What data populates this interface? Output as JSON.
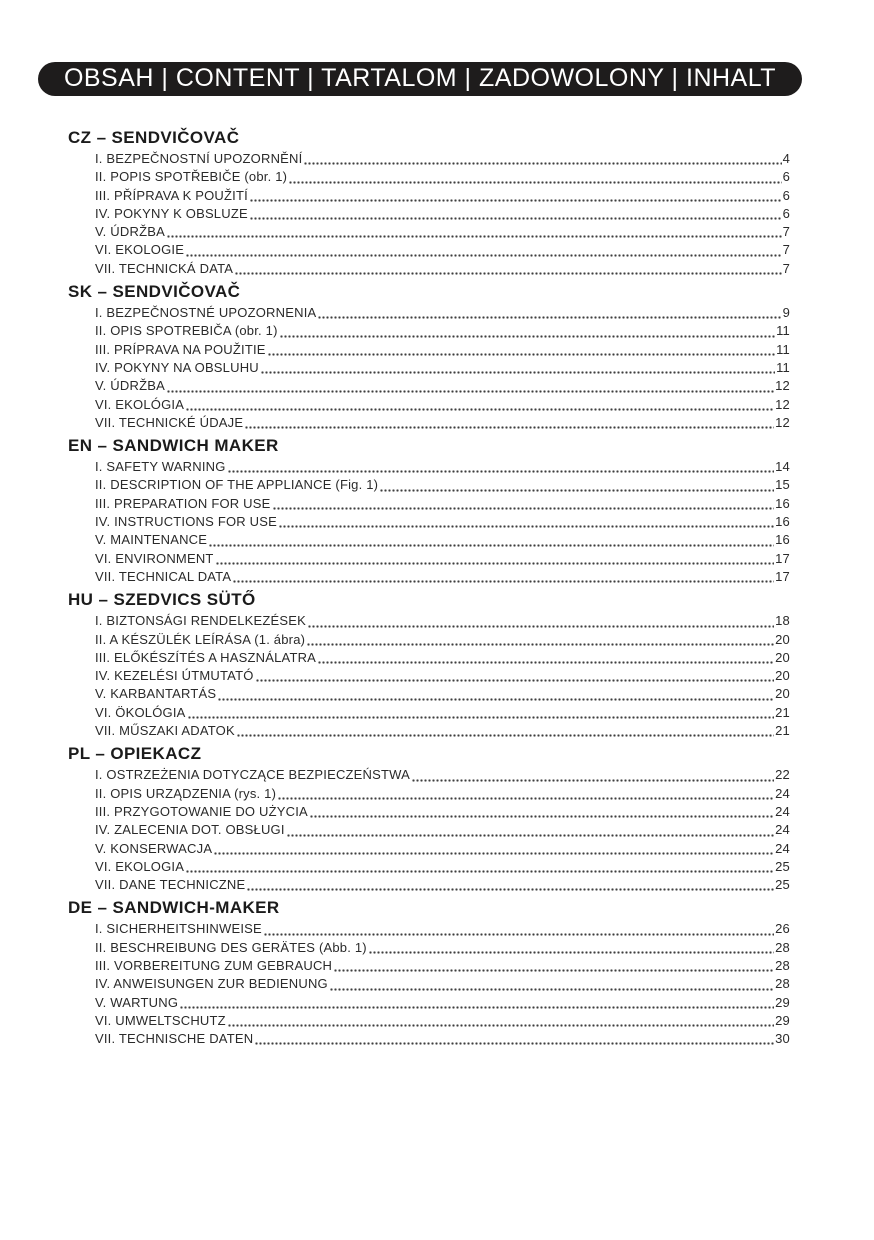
{
  "colors": {
    "header_bg": "#1e1c1c",
    "header_text": "#ffffff",
    "text": "#2a2a2a",
    "text_strong": "#1b1b1b",
    "page_bg": "#ffffff"
  },
  "header": {
    "title": "OBSAH | CONTENT | TARTALOM | ZADOWOLONY | INHALT"
  },
  "sections": [
    {
      "title": "CZ – SENDVIČOVAČ",
      "items": [
        {
          "label": "I. BEZPEČNOSTNÍ UPOZORNĚNÍ",
          "page": "4"
        },
        {
          "label": "II. POPIS SPOTŘEBIČE (obr. 1)",
          "page": "6"
        },
        {
          "label": "III. PŘÍPRAVA K POUŽITÍ",
          "page": "6"
        },
        {
          "label": "IV. POKYNY K OBSLUZE",
          "page": "6"
        },
        {
          "label": "V. ÚDRŽBA",
          "page": "7"
        },
        {
          "label": "VI. EKOLOGIE",
          "page": "7"
        },
        {
          "label": "VII. TECHNICKÁ DATA",
          "page": "7"
        }
      ]
    },
    {
      "title": "SK – SENDVIČOVAČ",
      "items": [
        {
          "label": "I. BEZPEČNOSTNÉ UPOZORNENIA",
          "page": "9"
        },
        {
          "label": "II. OPIS SPOTREBIČA (obr. 1)",
          "page": "11"
        },
        {
          "label": "III. PRÍPRAVA NA POUŽITIE",
          "page": "11"
        },
        {
          "label": "IV. POKYNY NA OBSLUHU",
          "page": "11"
        },
        {
          "label": "V. ÚDRŽBA",
          "page": "12"
        },
        {
          "label": "VI. EKOLÓGIA",
          "page": "12"
        },
        {
          "label": "VII. TECHNICKÉ ÚDAJE",
          "page": "12"
        }
      ]
    },
    {
      "title": "EN – SANDWICH MAKER",
      "items": [
        {
          "label": "I. SAFETY WARNING",
          "page": "14"
        },
        {
          "label": "II. DESCRIPTION OF THE APPLIANCE (Fig. 1)",
          "page": "15"
        },
        {
          "label": "III. PREPARATION FOR USE",
          "page": "16"
        },
        {
          "label": "IV. INSTRUCTIONS FOR USE",
          "page": "16"
        },
        {
          "label": "V. MAINTENANCE",
          "page": "16"
        },
        {
          "label": "VI. ENVIRONMENT",
          "page": "17"
        },
        {
          "label": "VII. TECHNICAL DATA",
          "page": "17"
        }
      ]
    },
    {
      "title": "HU – SZEDVICS SÜTŐ",
      "items": [
        {
          "label": "I. BIZTONSÁGI RENDELKEZÉSEK",
          "page": "18"
        },
        {
          "label": "II. A KÉSZÜLÉK LEÍRÁSA (1. ábra)",
          "page": "20"
        },
        {
          "label": "III. ELŐKÉSZÍTÉS A HASZNÁLATRA",
          "page": "20"
        },
        {
          "label": "IV. KEZELÉSI ÚTMUTATÓ",
          "page": "20"
        },
        {
          "label": "V. KARBANTARTÁS",
          "page": "20"
        },
        {
          "label": "VI. ÖKOLÓGIA",
          "page": "21"
        },
        {
          "label": "VII. MŰSZAKI ADATOK",
          "page": "21"
        }
      ]
    },
    {
      "title": "PL – OPIEKACZ",
      "items": [
        {
          "label": "I. OSTRZEŻENIA DOTYCZĄCE BEZPIECZEŃSTWA",
          "page": "22"
        },
        {
          "label": "II. OPIS URZĄDZENIA (rys. 1)",
          "page": "24"
        },
        {
          "label": "III. PRZYGOTOWANIE DO UŻYCIA",
          "page": "24"
        },
        {
          "label": "IV. ZALECENIA DOT. OBSŁUGI",
          "page": "24"
        },
        {
          "label": "V. KONSERWACJA",
          "page": "24"
        },
        {
          "label": "VI. EKOLOGIA",
          "page": "25"
        },
        {
          "label": "VII. DANE TECHNICZNE",
          "page": "25"
        }
      ]
    },
    {
      "title": "DE – SANDWICH-MAKER",
      "items": [
        {
          "label": "I. SICHERHEITSHINWEISE",
          "page": "26"
        },
        {
          "label": "II. BESCHREIBUNG DES GERÄTES (Abb. 1)",
          "page": "28"
        },
        {
          "label": "III. VORBEREITUNG ZUM GEBRAUCH",
          "page": "28"
        },
        {
          "label": "IV. ANWEISUNGEN ZUR BEDIENUNG",
          "page": "28"
        },
        {
          "label": "V. WARTUNG",
          "page": "29"
        },
        {
          "label": "VI. UMWELTSCHUTZ",
          "page": "29"
        },
        {
          "label": "VII. TECHNISCHE DATEN",
          "page": "30"
        }
      ]
    }
  ]
}
